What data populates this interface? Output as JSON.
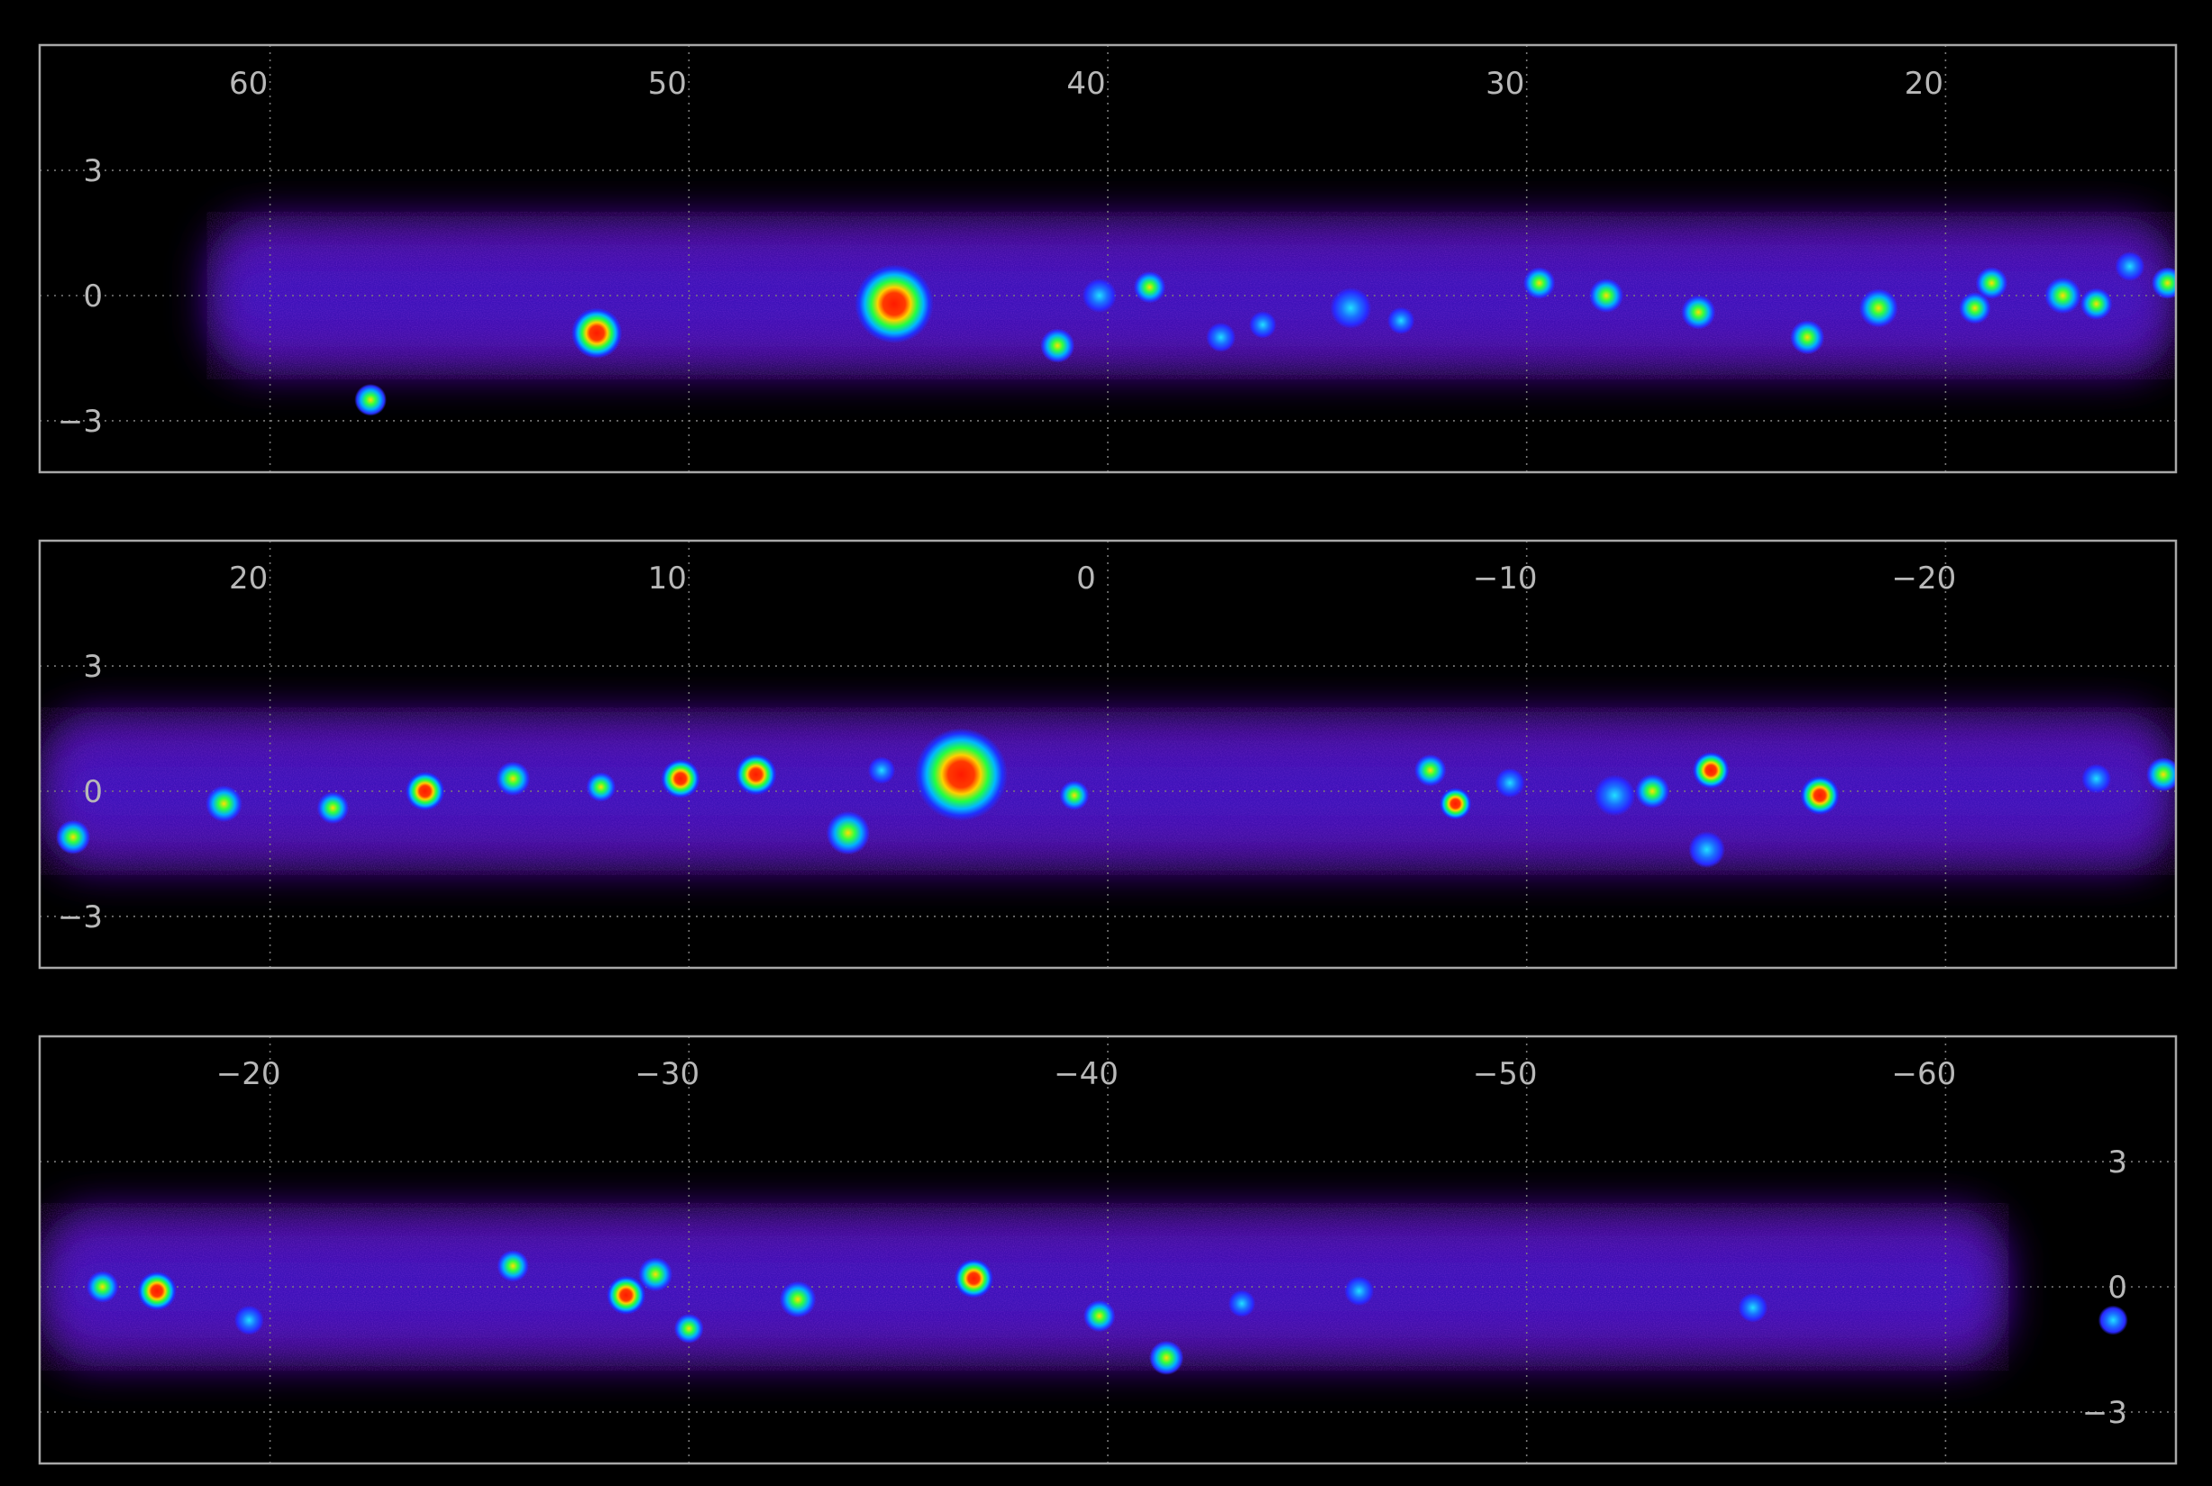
{
  "panels": [
    {
      "x_ticks": [
        {
          "label": "60",
          "value": 60
        },
        {
          "label": "50",
          "value": 50
        },
        {
          "label": "40",
          "value": 40
        },
        {
          "label": "30",
          "value": 30
        },
        {
          "label": "20",
          "value": 20
        }
      ],
      "y_ticks": [
        {
          "label": "3",
          "value": 3
        },
        {
          "label": "0",
          "value": 0
        },
        {
          "label": "−3",
          "value": -3
        }
      ],
      "x_range": [
        65.5,
        14.5
      ],
      "y_label_side": "left",
      "sources": [
        {
          "l": 52.2,
          "b": -0.9,
          "size": 1.4,
          "level": 1.0
        },
        {
          "l": 45.1,
          "b": -0.2,
          "size": 2.6,
          "level": 1.0
        },
        {
          "l": 57.6,
          "b": -2.5,
          "size": 0.6,
          "level": 0.5
        },
        {
          "l": 40.2,
          "b": 0.0,
          "size": 0.7,
          "level": 0.4
        },
        {
          "l": 39.0,
          "b": 0.2,
          "size": 0.6,
          "level": 0.55
        },
        {
          "l": 41.2,
          "b": -1.2,
          "size": 0.7,
          "level": 0.7
        },
        {
          "l": 34.2,
          "b": -0.3,
          "size": 1.0,
          "level": 0.4
        },
        {
          "l": 37.3,
          "b": -1.0,
          "size": 0.5,
          "level": 0.3
        },
        {
          "l": 28.1,
          "b": 0.0,
          "size": 0.7,
          "level": 0.6
        },
        {
          "l": 29.7,
          "b": 0.3,
          "size": 0.6,
          "level": 0.5
        },
        {
          "l": 25.9,
          "b": -0.4,
          "size": 0.7,
          "level": 0.65
        },
        {
          "l": 23.3,
          "b": -1.0,
          "size": 0.7,
          "level": 0.7
        },
        {
          "l": 21.6,
          "b": -0.3,
          "size": 0.9,
          "level": 0.55
        },
        {
          "l": 18.9,
          "b": 0.3,
          "size": 0.6,
          "level": 0.5
        },
        {
          "l": 17.2,
          "b": 0.0,
          "size": 0.8,
          "level": 0.7
        },
        {
          "l": 16.4,
          "b": -0.2,
          "size": 0.6,
          "level": 0.6
        },
        {
          "l": 19.3,
          "b": -0.3,
          "size": 0.6,
          "level": 0.65
        },
        {
          "l": 15.6,
          "b": 0.7,
          "size": 0.5,
          "level": 0.45
        },
        {
          "l": 14.7,
          "b": 0.3,
          "size": 0.6,
          "level": 0.5
        },
        {
          "l": 36.3,
          "b": -0.7,
          "size": 0.4,
          "level": 0.3
        },
        {
          "l": 33.0,
          "b": -0.6,
          "size": 0.4,
          "level": 0.3
        }
      ]
    },
    {
      "x_ticks": [
        {
          "label": "20",
          "value": 20
        },
        {
          "label": "10",
          "value": 10
        },
        {
          "label": "0",
          "value": 0
        },
        {
          "label": "−10",
          "value": -10
        },
        {
          "label": "−20",
          "value": -20
        }
      ],
      "y_ticks": [
        {
          "label": "3",
          "value": 3
        },
        {
          "label": "0",
          "value": 0
        },
        {
          "label": "−3",
          "value": -3
        }
      ],
      "x_range": [
        25.5,
        -25.5
      ],
      "y_label_side": "left",
      "sources": [
        {
          "l": 3.5,
          "b": 0.4,
          "size": 3.2,
          "level": 1.0
        },
        {
          "l": 6.2,
          "b": -1.0,
          "size": 1.1,
          "level": 0.7
        },
        {
          "l": 8.4,
          "b": 0.4,
          "size": 1.0,
          "level": 0.8
        },
        {
          "l": 10.2,
          "b": 0.3,
          "size": 0.9,
          "level": 0.85
        },
        {
          "l": 16.3,
          "b": 0.0,
          "size": 0.9,
          "level": 0.75
        },
        {
          "l": 14.2,
          "b": 0.3,
          "size": 0.7,
          "level": 0.65
        },
        {
          "l": 21.1,
          "b": -0.3,
          "size": 0.8,
          "level": 0.6
        },
        {
          "l": 24.7,
          "b": -1.1,
          "size": 0.7,
          "level": 0.7
        },
        {
          "l": 18.5,
          "b": -0.4,
          "size": 0.6,
          "level": 0.6
        },
        {
          "l": 0.8,
          "b": -0.1,
          "size": 0.5,
          "level": 0.6
        },
        {
          "l": -7.7,
          "b": 0.5,
          "size": 0.6,
          "level": 0.6
        },
        {
          "l": -8.3,
          "b": -0.3,
          "size": 0.6,
          "level": 0.75
        },
        {
          "l": -12.1,
          "b": -0.1,
          "size": 1.0,
          "level": 0.45
        },
        {
          "l": -13.0,
          "b": 0.0,
          "size": 0.7,
          "level": 0.65
        },
        {
          "l": -14.4,
          "b": 0.5,
          "size": 0.8,
          "level": 0.75
        },
        {
          "l": -17.0,
          "b": -0.1,
          "size": 0.9,
          "level": 0.8
        },
        {
          "l": -14.3,
          "b": -1.4,
          "size": 0.8,
          "level": 0.3
        },
        {
          "l": -25.2,
          "b": 0.4,
          "size": 0.7,
          "level": 0.5
        },
        {
          "l": -23.6,
          "b": 0.3,
          "size": 0.5,
          "level": 0.45
        },
        {
          "l": 12.1,
          "b": 0.1,
          "size": 0.5,
          "level": 0.6
        },
        {
          "l": 5.4,
          "b": 0.5,
          "size": 0.4,
          "level": 0.45
        },
        {
          "l": -9.6,
          "b": 0.2,
          "size": 0.5,
          "level": 0.4
        }
      ]
    },
    {
      "x_ticks": [
        {
          "label": "−20",
          "value": -20
        },
        {
          "label": "−30",
          "value": -30
        },
        {
          "label": "−40",
          "value": -40
        },
        {
          "label": "−50",
          "value": -50
        },
        {
          "label": "−60",
          "value": -60
        }
      ],
      "y_ticks": [
        {
          "label": "3",
          "value": 3
        },
        {
          "label": "0",
          "value": 0
        },
        {
          "label": "−3",
          "value": -3
        }
      ],
      "x_range": [
        -14.5,
        -65.5
      ],
      "y_label_side": "right",
      "sources": [
        {
          "l": -16.0,
          "b": 0.0,
          "size": 0.6,
          "level": 0.55
        },
        {
          "l": -17.3,
          "b": -0.1,
          "size": 0.9,
          "level": 0.9
        },
        {
          "l": -19.5,
          "b": -0.8,
          "size": 0.5,
          "level": 0.3
        },
        {
          "l": -25.8,
          "b": 0.5,
          "size": 0.6,
          "level": 0.55
        },
        {
          "l": -28.5,
          "b": -0.2,
          "size": 0.9,
          "level": 0.8
        },
        {
          "l": -29.2,
          "b": 0.3,
          "size": 0.7,
          "level": 0.7
        },
        {
          "l": -30.0,
          "b": -1.0,
          "size": 0.5,
          "level": 0.5
        },
        {
          "l": -32.6,
          "b": -0.3,
          "size": 0.8,
          "level": 0.6
        },
        {
          "l": -36.8,
          "b": 0.2,
          "size": 0.9,
          "level": 0.9
        },
        {
          "l": -39.8,
          "b": -0.7,
          "size": 0.6,
          "level": 0.55
        },
        {
          "l": -41.4,
          "b": -1.7,
          "size": 0.7,
          "level": 0.6
        },
        {
          "l": -43.2,
          "b": -0.4,
          "size": 0.4,
          "level": 0.35
        },
        {
          "l": -46.0,
          "b": -0.1,
          "size": 0.5,
          "level": 0.4
        },
        {
          "l": -55.4,
          "b": -0.5,
          "size": 0.5,
          "level": 0.4
        },
        {
          "l": -64.0,
          "b": -0.8,
          "size": 0.5,
          "level": 0.3
        }
      ]
    }
  ]
}
